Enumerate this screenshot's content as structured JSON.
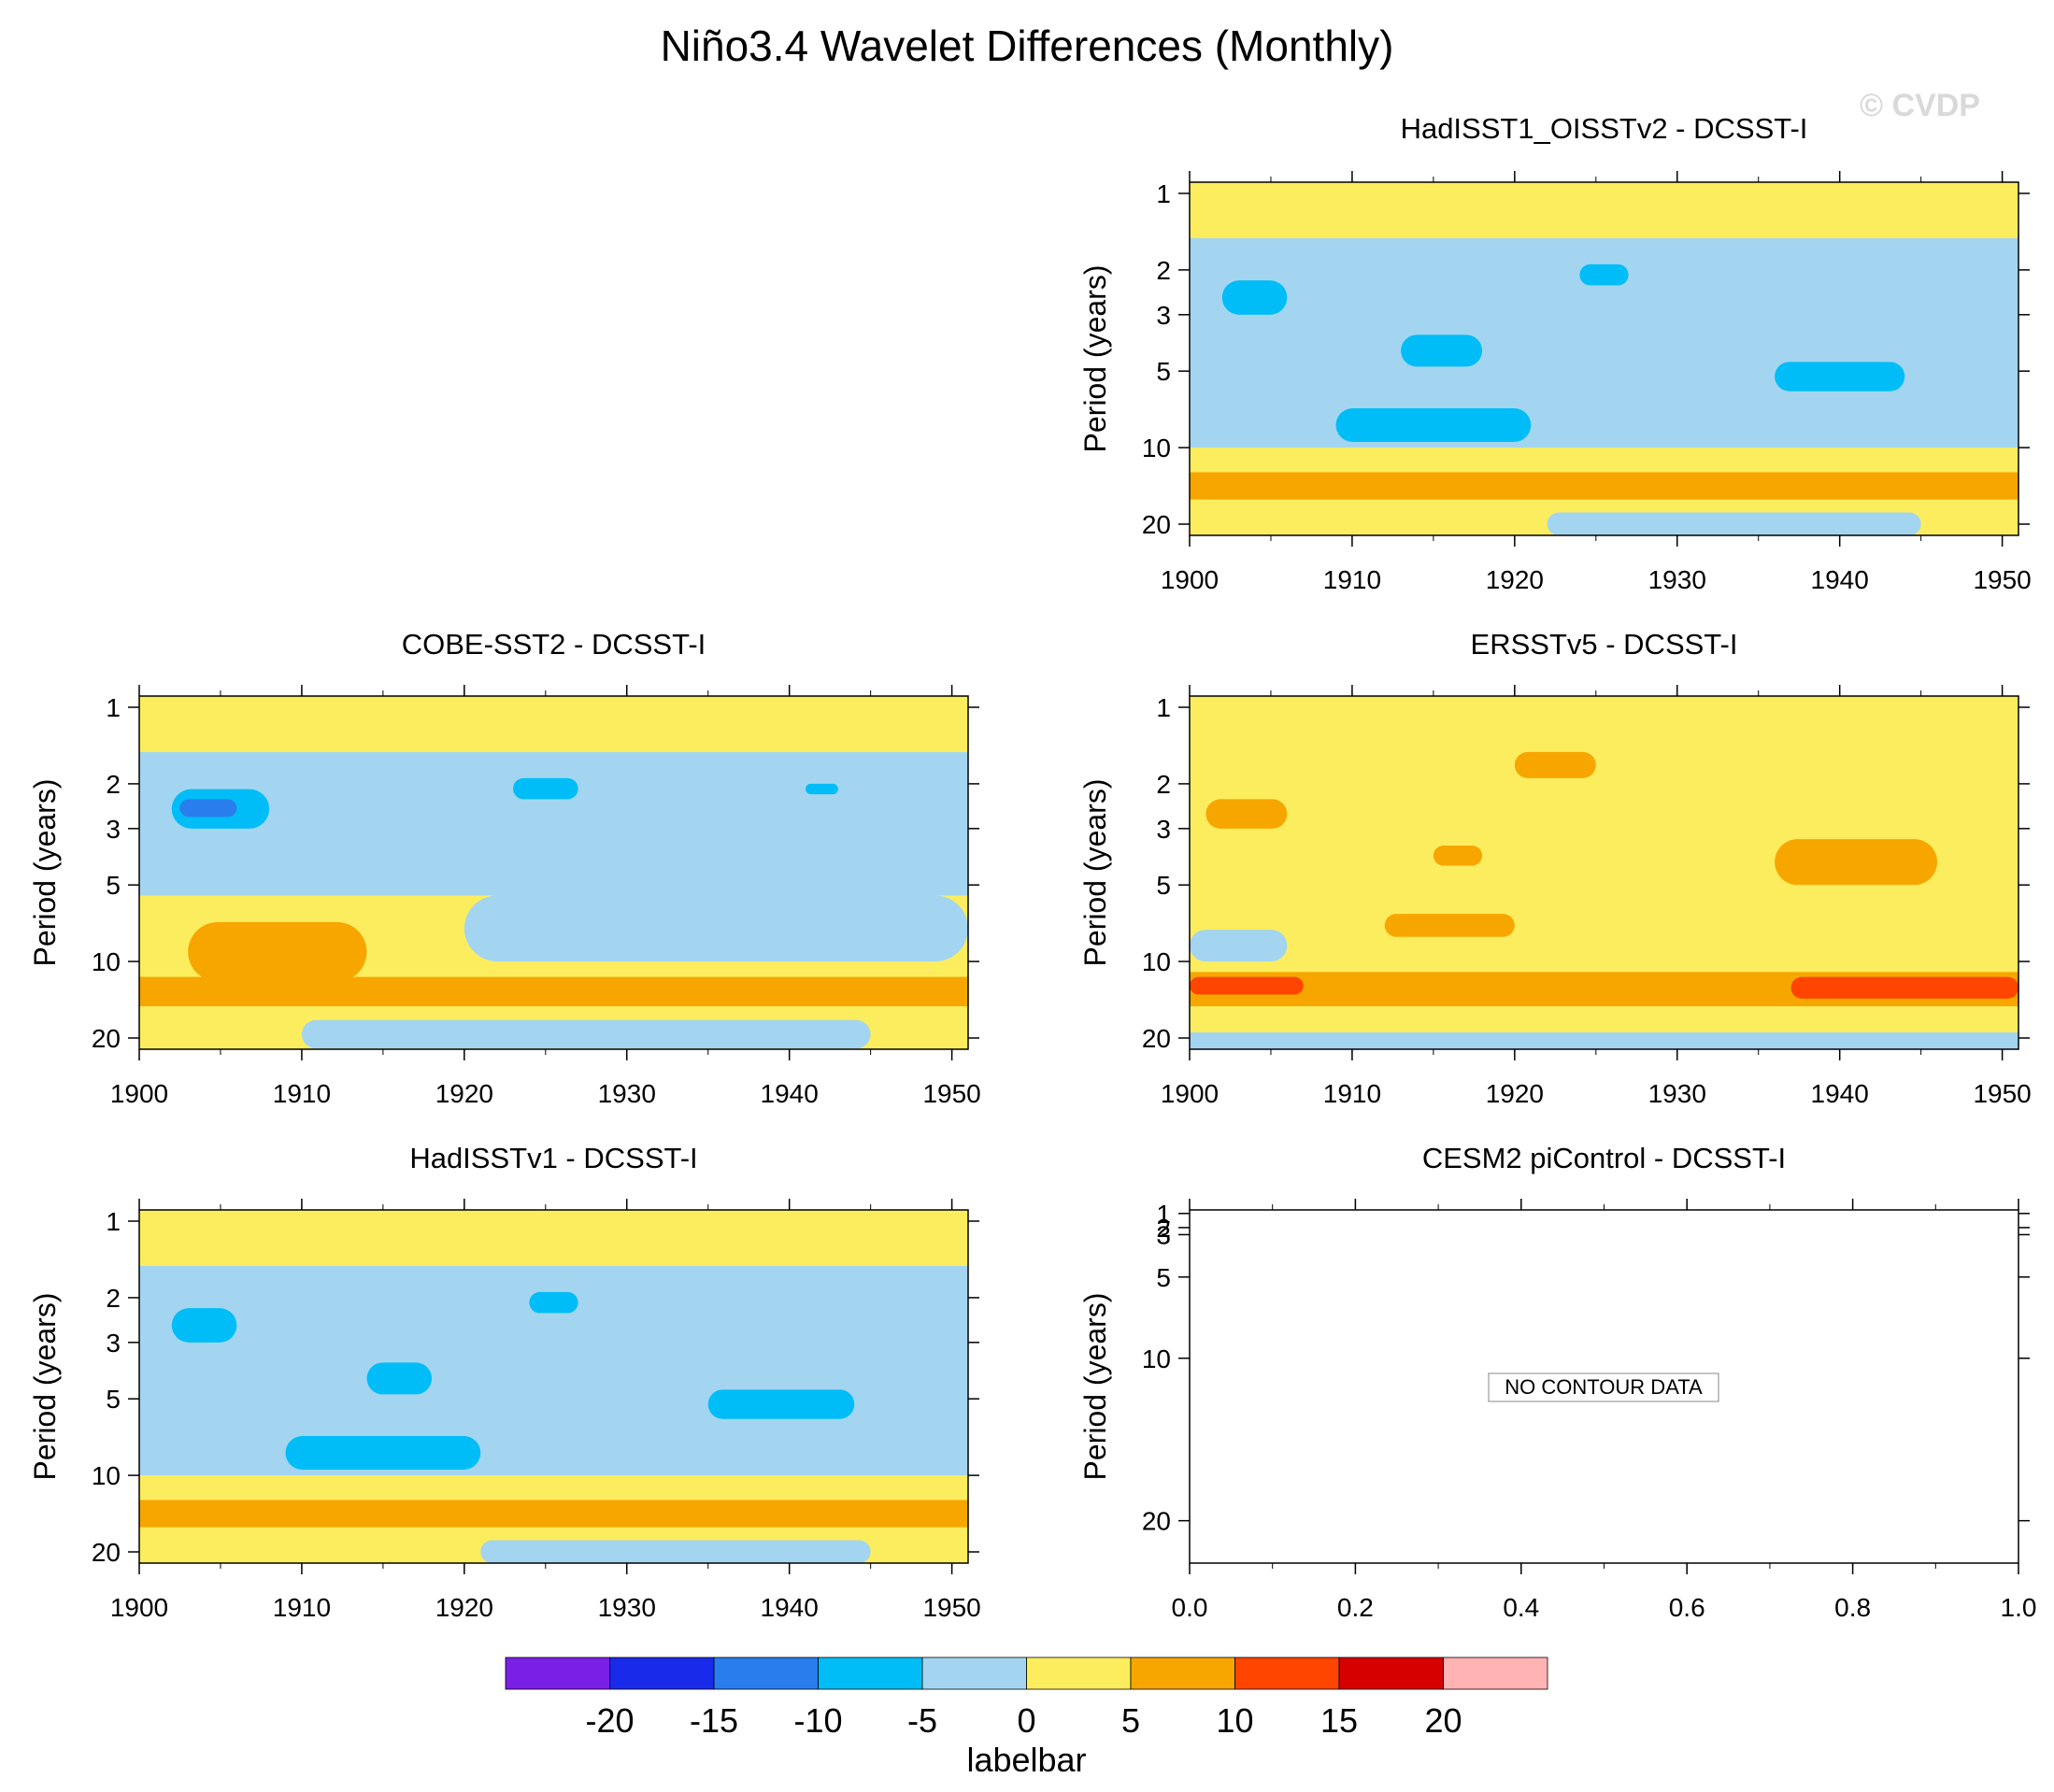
{
  "title": "Niño3.4 Wavelet Differences (Monthly)",
  "watermark": "© CVDP",
  "chart_data": {
    "type": "contour",
    "colors": {
      "neg_20_plus": "#7a1fe5",
      "neg_15_20": "#1a2aeb",
      "neg_10_15": "#2a7ded",
      "neg_5_10": "#00bdf7",
      "neg_0_5": "#a3d5f0",
      "pos_0_5": "#fced5e",
      "pos_5_10": "#f7a600",
      "pos_10_15": "#ff4500",
      "pos_15_20": "#d60000",
      "pos_20_plus": "#ffb3b3"
    },
    "panels": [
      {
        "id": "hadisst1-oisstv2",
        "title": "HadISST1_OISSTv2 - DCSST-I",
        "xlabel": "",
        "ylabel": "Period (years)",
        "xlim": [
          1900,
          1951
        ],
        "x_ticks": [
          "1900",
          "1910",
          "1920",
          "1930",
          "1940",
          "1950"
        ],
        "y_ticks": [
          "1",
          "2",
          "3",
          "5",
          "10",
          "20"
        ],
        "has_data": true,
        "background": "#fced5e",
        "regions": [
          {
            "level": "neg_0_5",
            "x": [
              1900,
              1951
            ],
            "period": [
              1.5,
              10
            ]
          },
          {
            "level": "neg_5_10",
            "x": [
              1902,
              1906
            ],
            "period": [
              2.2,
              3.0
            ]
          },
          {
            "level": "neg_5_10",
            "x": [
              1924,
              1927
            ],
            "period": [
              1.9,
              2.3
            ]
          },
          {
            "level": "neg_5_10",
            "x": [
              1913,
              1918
            ],
            "period": [
              3.6,
              4.8
            ]
          },
          {
            "level": "neg_5_10",
            "x": [
              1909,
              1921
            ],
            "period": [
              7.0,
              9.5
            ]
          },
          {
            "level": "neg_5_10",
            "x": [
              1936,
              1944
            ],
            "period": [
              4.6,
              6.0
            ]
          },
          {
            "level": "pos_5_10",
            "x": [
              1900,
              1951
            ],
            "period": [
              12.5,
              16.0
            ]
          },
          {
            "level": "neg_0_5",
            "x": [
              1922,
              1945
            ],
            "period": [
              18.0,
              24.0
            ]
          }
        ]
      },
      {
        "id": "cobe-sst2",
        "title": "COBE-SST2 - DCSST-I",
        "xlabel": "",
        "ylabel": "Period (years)",
        "xlim": [
          1900,
          1951
        ],
        "x_ticks": [
          "1900",
          "1910",
          "1920",
          "1930",
          "1940",
          "1950"
        ],
        "y_ticks": [
          "1",
          "2",
          "3",
          "5",
          "10",
          "20"
        ],
        "has_data": true,
        "background": "#fced5e",
        "regions": [
          {
            "level": "neg_0_5",
            "x": [
              1900,
              1951
            ],
            "period": [
              1.5,
              5.5
            ]
          },
          {
            "level": "neg_5_10",
            "x": [
              1902,
              1908
            ],
            "period": [
              2.1,
              3.0
            ]
          },
          {
            "level": "neg_10_15",
            "x": [
              1902.5,
              1906
            ],
            "period": [
              2.3,
              2.7
            ]
          },
          {
            "level": "neg_5_10",
            "x": [
              1923,
              1927
            ],
            "period": [
              1.9,
              2.3
            ]
          },
          {
            "level": "neg_5_10",
            "x": [
              1941,
              1943
            ],
            "period": [
              2.0,
              2.2
            ]
          },
          {
            "level": "neg_0_5",
            "x": [
              1920,
              1951
            ],
            "period": [
              5.5,
              10
            ]
          },
          {
            "level": "pos_5_10",
            "x": [
              1903,
              1914
            ],
            "period": [
              7.0,
              12.0
            ]
          },
          {
            "level": "pos_5_10",
            "x": [
              1900,
              1951
            ],
            "period": [
              11.5,
              15.0
            ]
          },
          {
            "level": "neg_0_5",
            "x": [
              1910,
              1945
            ],
            "period": [
              17.0,
              22.0
            ]
          }
        ]
      },
      {
        "id": "ersstv5",
        "title": "ERSSTv5 - DCSST-I",
        "xlabel": "",
        "ylabel": "Period (years)",
        "xlim": [
          1900,
          1951
        ],
        "x_ticks": [
          "1900",
          "1910",
          "1920",
          "1930",
          "1940",
          "1950"
        ],
        "y_ticks": [
          "1",
          "2",
          "3",
          "5",
          "10",
          "20"
        ],
        "has_data": true,
        "background": "#fced5e",
        "regions": [
          {
            "level": "pos_5_10",
            "x": [
              1901,
              1906
            ],
            "period": [
              2.3,
              3.0
            ]
          },
          {
            "level": "pos_5_10",
            "x": [
              1920,
              1925
            ],
            "period": [
              1.5,
              1.9
            ]
          },
          {
            "level": "pos_5_10",
            "x": [
              1915,
              1918
            ],
            "period": [
              3.5,
              4.2
            ]
          },
          {
            "level": "pos_5_10",
            "x": [
              1936,
              1946
            ],
            "period": [
              3.3,
              5.0
            ]
          },
          {
            "level": "pos_5_10",
            "x": [
              1912,
              1920
            ],
            "period": [
              6.5,
              8.0
            ]
          },
          {
            "level": "neg_0_5",
            "x": [
              1900,
              1906
            ],
            "period": [
              7.5,
              10.0
            ]
          },
          {
            "level": "pos_5_10",
            "x": [
              1900,
              1951
            ],
            "period": [
              11.0,
              15.0
            ]
          },
          {
            "level": "pos_10_15",
            "x": [
              1900,
              1907
            ],
            "period": [
              11.5,
              13.5
            ]
          },
          {
            "level": "pos_10_15",
            "x": [
              1937,
              1951
            ],
            "period": [
              11.5,
              14.0
            ]
          },
          {
            "level": "neg_0_5",
            "x": [
              1900,
              1951
            ],
            "period": [
              19.0,
              24.0
            ]
          }
        ]
      },
      {
        "id": "hadisstv1",
        "title": "HadISSTv1 - DCSST-I",
        "xlabel": "",
        "ylabel": "Period (years)",
        "xlim": [
          1900,
          1951
        ],
        "x_ticks": [
          "1900",
          "1910",
          "1920",
          "1930",
          "1940",
          "1950"
        ],
        "y_ticks": [
          "1",
          "2",
          "3",
          "5",
          "10",
          "20"
        ],
        "has_data": true,
        "background": "#fced5e",
        "regions": [
          {
            "level": "neg_0_5",
            "x": [
              1900,
              1951
            ],
            "period": [
              1.5,
              10
            ]
          },
          {
            "level": "neg_5_10",
            "x": [
              1902,
              1906
            ],
            "period": [
              2.2,
              3.0
            ]
          },
          {
            "level": "neg_5_10",
            "x": [
              1924,
              1927
            ],
            "period": [
              1.9,
              2.3
            ]
          },
          {
            "level": "neg_5_10",
            "x": [
              1914,
              1918
            ],
            "period": [
              3.6,
              4.8
            ]
          },
          {
            "level": "neg_5_10",
            "x": [
              1909,
              1921
            ],
            "period": [
              7.0,
              9.5
            ]
          },
          {
            "level": "neg_5_10",
            "x": [
              1935,
              1944
            ],
            "period": [
              4.6,
              6.0
            ]
          },
          {
            "level": "pos_5_10",
            "x": [
              1900,
              1951
            ],
            "period": [
              12.5,
              16.0
            ]
          },
          {
            "level": "neg_0_5",
            "x": [
              1921,
              1945
            ],
            "period": [
              18.0,
              24.0
            ]
          }
        ]
      },
      {
        "id": "cesm2-picontrol",
        "title": "CESM2 piControl - DCSST-I",
        "xlabel": "",
        "ylabel": "Period (years)",
        "xlim": [
          0.0,
          1.0
        ],
        "x_ticks": [
          "0.0",
          "0.2",
          "0.4",
          "0.6",
          "0.8",
          "1.0"
        ],
        "y_ticks": [
          "1",
          "2",
          "3",
          "5",
          "10",
          "20"
        ],
        "has_data": false,
        "no_data_text": "NO CONTOUR DATA"
      }
    ],
    "labelbar": {
      "title": "labelbar",
      "tick_labels": [
        "-20",
        "-15",
        "-10",
        "-5",
        "0",
        "5",
        "10",
        "15",
        "20"
      ],
      "levels": [
        "neg_20_plus",
        "neg_15_20",
        "neg_10_15",
        "neg_5_10",
        "neg_0_5",
        "pos_0_5",
        "pos_5_10",
        "pos_10_15",
        "pos_15_20",
        "pos_20_plus"
      ]
    }
  }
}
